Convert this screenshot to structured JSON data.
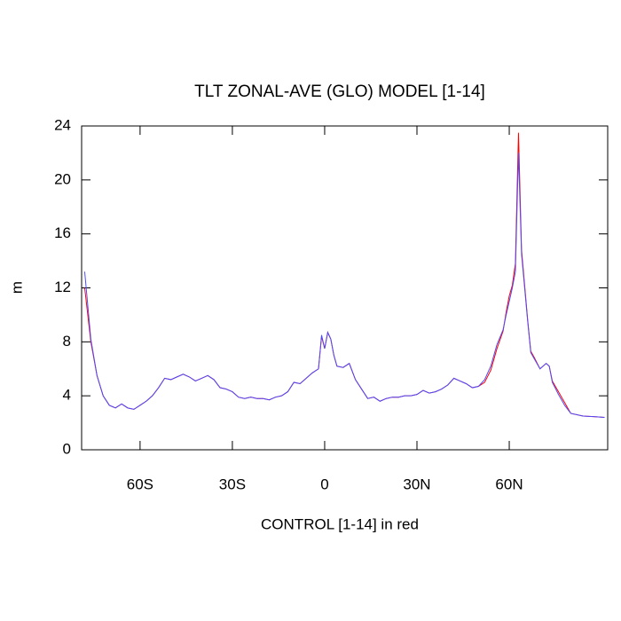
{
  "chart_data": {
    "type": "line",
    "title": "TLT ZONAL-AVE (GLO) MODEL [1-14]",
    "x_label": "CONTROL [1-14] in red",
    "y_label": "m",
    "x": [
      -78,
      -76,
      -74,
      -72,
      -70,
      -68,
      -66,
      -64,
      -62,
      -60,
      -58,
      -56,
      -54,
      -52,
      -50,
      -48,
      -46,
      -44,
      -42,
      -40,
      -38,
      -36,
      -34,
      -32,
      -30,
      -28,
      -26,
      -24,
      -22,
      -20,
      -18,
      -16,
      -14,
      -12,
      -10,
      -8,
      -6,
      -4,
      -2,
      -1,
      0,
      1,
      2,
      3,
      4,
      6,
      8,
      10,
      12,
      14,
      16,
      18,
      20,
      22,
      24,
      26,
      28,
      30,
      32,
      34,
      36,
      38,
      40,
      42,
      44,
      46,
      48,
      50,
      52,
      54,
      56,
      58,
      59,
      60,
      61,
      62,
      63,
      64,
      65,
      66,
      67,
      68,
      70,
      72,
      73,
      74,
      76,
      78,
      80,
      84,
      88,
      91
    ],
    "series": [
      {
        "color": "#ff0000",
        "values": [
          12.0,
          8.0,
          5.5,
          4.0,
          3.3,
          3.1,
          3.4,
          3.1,
          3.0,
          3.3,
          3.6,
          4.0,
          4.6,
          5.3,
          5.2,
          5.4,
          5.6,
          5.4,
          5.1,
          5.3,
          5.5,
          5.2,
          4.6,
          4.5,
          4.3,
          3.9,
          3.8,
          3.9,
          3.8,
          3.8,
          3.7,
          3.9,
          4.0,
          4.3,
          5.0,
          4.9,
          5.3,
          5.7,
          6.0,
          8.4,
          7.5,
          8.7,
          8.2,
          7.0,
          6.2,
          6.1,
          6.4,
          5.2,
          4.5,
          3.8,
          3.9,
          3.6,
          3.8,
          3.9,
          3.9,
          4.0,
          4.0,
          4.1,
          4.4,
          4.2,
          4.3,
          4.5,
          4.8,
          5.3,
          5.1,
          4.9,
          4.6,
          4.7,
          5.0,
          5.9,
          7.5,
          8.8,
          10.2,
          11.4,
          12.2,
          13.8,
          23.5,
          14.8,
          12.2,
          9.6,
          7.3,
          6.9,
          6.0,
          6.4,
          6.2,
          5.1,
          4.3,
          3.5,
          2.7,
          2.5,
          2.45,
          2.4
        ]
      },
      {
        "color": "#4a4aff",
        "values": [
          13.2,
          8.2,
          5.5,
          4.0,
          3.3,
          3.1,
          3.4,
          3.1,
          3.0,
          3.3,
          3.6,
          4.0,
          4.6,
          5.3,
          5.2,
          5.4,
          5.6,
          5.4,
          5.1,
          5.3,
          5.5,
          5.2,
          4.6,
          4.5,
          4.3,
          3.9,
          3.8,
          3.9,
          3.8,
          3.8,
          3.7,
          3.9,
          4.0,
          4.3,
          5.0,
          4.9,
          5.3,
          5.7,
          6.0,
          8.5,
          7.5,
          8.7,
          8.2,
          7.0,
          6.2,
          6.1,
          6.4,
          5.2,
          4.5,
          3.8,
          3.9,
          3.6,
          3.8,
          3.9,
          3.9,
          4.0,
          4.0,
          4.1,
          4.4,
          4.2,
          4.3,
          4.5,
          4.8,
          5.3,
          5.1,
          4.9,
          4.6,
          4.7,
          5.2,
          6.2,
          7.8,
          8.9,
          10.0,
          11.0,
          12.0,
          13.2,
          22.0,
          14.5,
          12.0,
          9.5,
          7.2,
          6.8,
          6.0,
          6.4,
          6.2,
          5.0,
          4.1,
          3.3,
          2.7,
          2.5,
          2.45,
          2.4
        ]
      }
    ],
    "xlim": [
      -79,
      92
    ],
    "xticks": [
      {
        "value": -60,
        "label": "60S"
      },
      {
        "value": -30,
        "label": "30S"
      },
      0,
      {
        "value": 30,
        "label": "30N"
      },
      {
        "value": 60,
        "label": "60N"
      }
    ],
    "ylim": [
      0,
      24
    ],
    "yticks": [
      0,
      4,
      8,
      12,
      16,
      20,
      24
    ]
  }
}
